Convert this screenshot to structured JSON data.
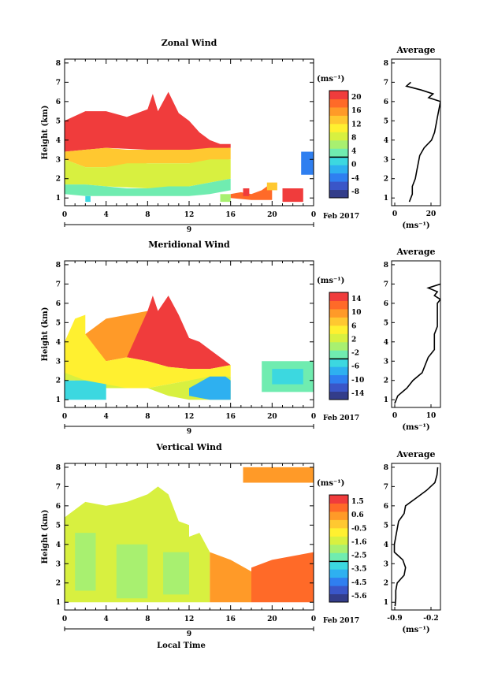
{
  "panels": [
    {
      "title": "Zonal Wind",
      "ylabel": "Height (km)",
      "colorbar_unit": "(ms⁻¹)",
      "colorbar_ticks": [
        "20",
        "16",
        "12",
        "8",
        "4",
        "0",
        "-4",
        "-8"
      ],
      "x_tick_labels": [
        "0",
        "4",
        "8",
        "12",
        "16",
        "20",
        "0"
      ],
      "y_tick_labels": [
        "1",
        "2",
        "3",
        "4",
        "5",
        "6",
        "7",
        "8"
      ],
      "day_label": "9",
      "date_label": "Feb 2017",
      "average": {
        "title": "Average",
        "x_tick_labels": [
          "0",
          "20"
        ],
        "xlabel": "(ms⁻¹)",
        "y_tick_labels": [
          "1",
          "2",
          "3",
          "4",
          "5",
          "6",
          "7",
          "8"
        ]
      }
    },
    {
      "title": "Meridional Wind",
      "ylabel": "Height (km)",
      "colorbar_unit": "(ms⁻¹)",
      "colorbar_ticks": [
        "14",
        "10",
        "6",
        "2",
        "-2",
        "-6",
        "-10",
        "-14"
      ],
      "x_tick_labels": [
        "0",
        "4",
        "8",
        "12",
        "16",
        "20",
        "0"
      ],
      "y_tick_labels": [
        "1",
        "2",
        "3",
        "4",
        "5",
        "6",
        "7",
        "8"
      ],
      "day_label": "9",
      "date_label": "Feb 2017",
      "average": {
        "title": "Average",
        "x_tick_labels": [
          "0",
          "10"
        ],
        "xlabel": "(ms⁻¹)",
        "y_tick_labels": [
          "1",
          "2",
          "3",
          "4",
          "5",
          "6",
          "7",
          "8"
        ]
      }
    },
    {
      "title": "Vertical Wind",
      "ylabel": "Height (km)",
      "colorbar_unit": "(ms⁻¹)",
      "colorbar_ticks": [
        "1.5",
        "0.6",
        "-0.5",
        "-1.6",
        "-2.5",
        "-3.5",
        "-4.5",
        "-5.6"
      ],
      "x_tick_labels": [
        "0",
        "4",
        "8",
        "12",
        "16",
        "20",
        "0"
      ],
      "y_tick_labels": [
        "1",
        "2",
        "3",
        "4",
        "5",
        "6",
        "7",
        "8"
      ],
      "day_label": "9",
      "date_label": "Feb 2017",
      "xlabel": "Local Time",
      "average": {
        "title": "Average",
        "x_tick_labels": [
          "-0.9",
          "-0.2"
        ],
        "xlabel": "(ms⁻¹)",
        "y_tick_labels": [
          "1",
          "2",
          "3",
          "4",
          "5",
          "6",
          "7",
          "8"
        ]
      }
    }
  ],
  "chart_data": [
    {
      "type": "heatmap",
      "title": "Zonal Wind",
      "ylabel": "Height (km)",
      "x_range_hours": [
        0,
        24
      ],
      "ylim": [
        0.6,
        8.2
      ],
      "color_range": [
        -10,
        22
      ],
      "regions": [
        {
          "level": 22,
          "x": [
            0,
            0,
            2,
            4,
            6,
            8,
            8.5,
            9,
            10,
            11,
            12,
            13,
            14,
            15,
            16,
            16,
            14,
            10,
            8,
            4,
            2,
            0
          ],
          "y": [
            3.4,
            5.0,
            5.5,
            5.5,
            5.2,
            5.6,
            6.4,
            5.5,
            6.5,
            5.4,
            5.0,
            4.4,
            4.0,
            3.8,
            3.8,
            3.6,
            3.5,
            3.5,
            3.5,
            3.6,
            3.5,
            3.4
          ]
        },
        {
          "level": 14,
          "x": [
            0,
            2,
            4,
            6,
            8,
            10,
            12,
            14,
            16,
            16,
            12,
            8,
            4,
            2,
            0
          ],
          "y": [
            3.4,
            3.5,
            3.6,
            3.5,
            3.5,
            3.5,
            3.5,
            3.6,
            3.6,
            3.0,
            2.8,
            2.8,
            2.6,
            2.6,
            3.0
          ]
        },
        {
          "level": 8,
          "x": [
            0,
            2,
            4,
            6,
            8,
            10,
            12,
            14,
            16,
            16,
            12,
            8,
            4,
            2,
            0
          ],
          "y": [
            3.0,
            2.6,
            2.6,
            2.8,
            2.8,
            2.8,
            2.8,
            3.0,
            3.0,
            2.0,
            1.6,
            1.5,
            1.6,
            1.7,
            1.7
          ]
        },
        {
          "level": 3,
          "x": [
            0,
            2,
            4,
            6,
            8,
            10,
            12,
            14,
            16,
            16,
            14,
            12,
            10,
            8,
            4,
            2,
            0
          ],
          "y": [
            1.7,
            1.7,
            1.6,
            1.5,
            1.5,
            1.6,
            1.6,
            1.8,
            2.0,
            1.4,
            1.2,
            1.1,
            1.1,
            1.1,
            1.1,
            1.1,
            1.2
          ]
        },
        {
          "level": 18,
          "x": [
            16,
            17,
            18,
            19,
            20,
            20,
            18,
            16
          ],
          "y": [
            1.2,
            1.3,
            1.2,
            1.4,
            1.8,
            0.9,
            0.9,
            1.0
          ]
        },
        {
          "level": 14,
          "x": [
            19.5,
            20.5,
            20.5,
            19.5
          ],
          "y": [
            1.8,
            1.8,
            1.4,
            1.4
          ]
        },
        {
          "level": 22,
          "x": [
            21,
            23,
            23,
            21
          ],
          "y": [
            1.5,
            1.5,
            0.8,
            0.8
          ]
        },
        {
          "level": 20,
          "x": [
            17.2,
            17.8,
            17.8,
            17.2
          ],
          "y": [
            1.5,
            1.5,
            1.1,
            1.1
          ]
        },
        {
          "level": 6,
          "x": [
            15,
            16,
            16,
            15
          ],
          "y": [
            1.2,
            1.2,
            0.8,
            0.8
          ]
        },
        {
          "level": -4,
          "x": [
            22.8,
            24,
            24,
            22.8
          ],
          "y": [
            3.4,
            3.4,
            2.2,
            2.2
          ]
        },
        {
          "level": 0,
          "x": [
            2,
            2.5,
            2.5,
            2
          ],
          "y": [
            1.1,
            1.1,
            0.8,
            0.8
          ]
        }
      ],
      "average_profile": {
        "xlim": [
          0,
          33
        ],
        "height": [
          0.8,
          1.2,
          1.6,
          2.0,
          2.4,
          2.8,
          3.2,
          3.6,
          4.0,
          4.4,
          4.8,
          5.2,
          5.6,
          6.0,
          6.2,
          6.4,
          6.6,
          6.8,
          7.0
        ],
        "value": [
          12,
          14,
          14,
          16,
          17,
          18,
          19,
          22,
          27,
          29,
          30,
          31,
          32,
          33,
          25,
          28,
          20,
          10,
          13
        ]
      }
    },
    {
      "type": "heatmap",
      "title": "Meridional Wind",
      "ylabel": "Height (km)",
      "x_range_hours": [
        0,
        24
      ],
      "ylim": [
        0.6,
        8.2
      ],
      "color_range": [
        -14,
        15
      ],
      "regions": [
        {
          "level": 14,
          "x": [
            4,
            6,
            8,
            8.5,
            9,
            10,
            11,
            12,
            13,
            14,
            15,
            16,
            14,
            12,
            10,
            8,
            6,
            4
          ],
          "y": [
            4.2,
            5.2,
            5.6,
            6.4,
            5.6,
            6.4,
            5.4,
            4.2,
            4.0,
            3.6,
            3.2,
            2.8,
            2.6,
            2.6,
            2.7,
            3.0,
            3.2,
            3.6
          ]
        },
        {
          "level": 10,
          "x": [
            2,
            4,
            6,
            8,
            6,
            4,
            3,
            2
          ],
          "y": [
            4.4,
            5.2,
            5.4,
            5.6,
            3.2,
            3.0,
            3.0,
            3.6
          ]
        },
        {
          "level": 6,
          "x": [
            0,
            1,
            2,
            2,
            4,
            6,
            8,
            10,
            12,
            14,
            16,
            16,
            12,
            8,
            4,
            2,
            0
          ],
          "y": [
            4.0,
            5.2,
            5.4,
            4.4,
            3.0,
            3.2,
            3.0,
            2.7,
            2.6,
            2.6,
            2.8,
            2.2,
            2.0,
            1.6,
            1.6,
            1.8,
            2.2
          ]
        },
        {
          "level": 2,
          "x": [
            0,
            2,
            4,
            6,
            8,
            10,
            12,
            14,
            16,
            16,
            14,
            12,
            10,
            8,
            6,
            4,
            2,
            0
          ],
          "y": [
            2.4,
            2.0,
            1.6,
            1.6,
            1.6,
            1.8,
            2.0,
            2.2,
            2.2,
            1.0,
            1.0,
            1.0,
            1.2,
            1.6,
            1.6,
            1.8,
            2.0,
            2.0
          ]
        },
        {
          "level": -4,
          "x": [
            0,
            2,
            4,
            4,
            2,
            0
          ],
          "y": [
            2.0,
            2.0,
            1.8,
            1.0,
            1.0,
            1.0
          ]
        },
        {
          "level": -6,
          "x": [
            12,
            14,
            15.5,
            16,
            16,
            14,
            12
          ],
          "y": [
            1.6,
            2.2,
            2.2,
            2.0,
            1.0,
            1.0,
            1.2
          ]
        },
        {
          "level": -2,
          "x": [
            19,
            24,
            24,
            19
          ],
          "y": [
            3.0,
            3.0,
            1.4,
            1.4
          ]
        },
        {
          "level": -4,
          "x": [
            20,
            23,
            23,
            20
          ],
          "y": [
            2.6,
            2.6,
            1.8,
            1.8
          ]
        }
      ],
      "average_profile": {
        "xlim": [
          -2,
          14
        ],
        "height": [
          0.8,
          1.2,
          1.6,
          2.0,
          2.4,
          2.8,
          3.2,
          3.6,
          4.0,
          4.4,
          4.8,
          5.2,
          5.6,
          6.0,
          6.2,
          6.4,
          6.6,
          6.8,
          7.0
        ],
        "value": [
          -1,
          0,
          3,
          5,
          8,
          9,
          10,
          12,
          12,
          12,
          13,
          13,
          13,
          13,
          14,
          12,
          13,
          10,
          14
        ]
      }
    },
    {
      "type": "heatmap",
      "title": "Vertical Wind",
      "xlabel": "Local Time",
      "ylabel": "Height (km)",
      "x_range_hours": [
        0,
        24
      ],
      "ylim": [
        0.6,
        8.2
      ],
      "color_range": [
        -5.6,
        1.6
      ],
      "regions": [
        {
          "level": -1.4,
          "x": [
            0,
            2,
            4,
            6,
            8,
            9,
            10,
            11,
            12,
            12,
            13,
            14,
            14,
            12,
            8,
            4,
            2,
            0
          ],
          "y": [
            5.4,
            6.2,
            6.0,
            6.2,
            6.6,
            7.0,
            6.6,
            5.2,
            5.0,
            4.4,
            4.6,
            3.6,
            1.0,
            1.0,
            1.0,
            1.0,
            1.0,
            1.0
          ]
        },
        {
          "level": -2.0,
          "x": [
            1,
            3,
            3,
            1
          ],
          "y": [
            4.6,
            4.6,
            1.6,
            1.6
          ]
        },
        {
          "level": -2.0,
          "x": [
            5,
            8,
            8,
            5
          ],
          "y": [
            4.0,
            4.0,
            1.2,
            1.2
          ]
        },
        {
          "level": -2.0,
          "x": [
            9.5,
            12,
            12,
            9.5
          ],
          "y": [
            3.6,
            3.6,
            1.4,
            1.4
          ]
        },
        {
          "level": 0.1,
          "x": [
            14,
            16,
            18,
            18,
            16,
            14
          ],
          "y": [
            3.6,
            3.2,
            2.6,
            1.0,
            1.0,
            1.0
          ]
        },
        {
          "level": 0.5,
          "x": [
            18,
            20,
            22,
            24,
            24,
            18
          ],
          "y": [
            2.8,
            3.2,
            3.4,
            3.6,
            1.0,
            1.0
          ]
        },
        {
          "level": 0.1,
          "x": [
            17.2,
            24,
            24,
            17.2
          ],
          "y": [
            8.0,
            8.0,
            7.2,
            7.2
          ]
        }
      ],
      "average_profile": {
        "xlim": [
          -0.9,
          -0.2
        ],
        "height": [
          0.8,
          1.2,
          1.6,
          2.0,
          2.4,
          2.8,
          3.2,
          3.6,
          4.0,
          4.4,
          4.8,
          5.2,
          5.6,
          6.0,
          6.4,
          6.8,
          7.2,
          7.6,
          8.0
        ],
        "value": [
          -0.85,
          -0.84,
          -0.84,
          -0.82,
          -0.72,
          -0.7,
          -0.74,
          -0.86,
          -0.86,
          -0.84,
          -0.82,
          -0.8,
          -0.72,
          -0.7,
          -0.55,
          -0.4,
          -0.28,
          -0.25,
          -0.24
        ]
      }
    }
  ]
}
